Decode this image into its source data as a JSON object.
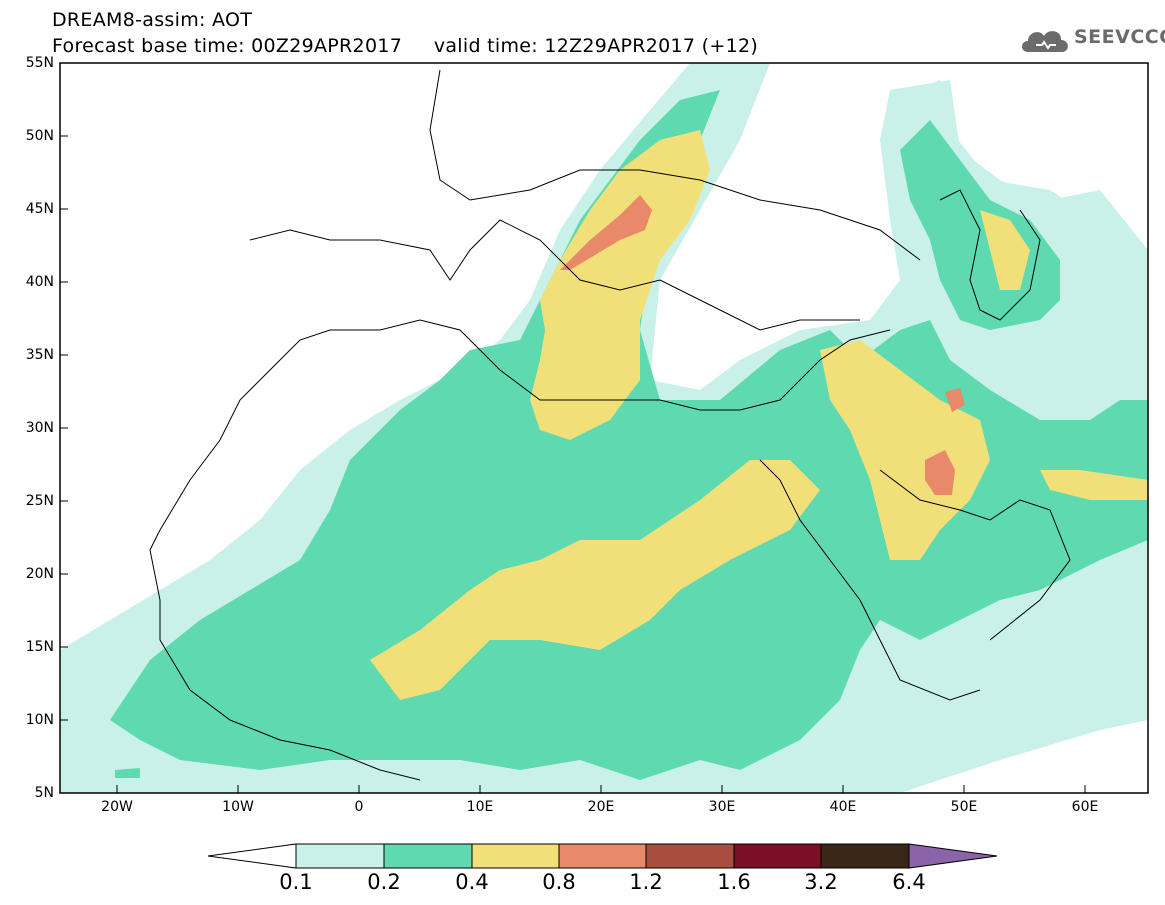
{
  "header": {
    "line1": "DREAM8-assim: AOT",
    "line2": "Forecast base time: 00Z29APR2017     valid time: 12Z29APR2017 (+12)",
    "logo_text": "SEEVCCC",
    "logo_icon": "cloud-icon"
  },
  "map": {
    "lon_range": [
      -25,
      65
    ],
    "lat_range": [
      5,
      55
    ],
    "y_labels": [
      "55N",
      "50N",
      "45N",
      "40N",
      "35N",
      "30N",
      "25N",
      "20N",
      "15N",
      "10N",
      "5N"
    ],
    "x_labels": [
      "20W",
      "10W",
      "0",
      "10E",
      "20E",
      "30E",
      "40E",
      "50E",
      "60E"
    ]
  },
  "colorbar": {
    "labels": [
      "0.1",
      "0.2",
      "0.4",
      "0.8",
      "1.2",
      "1.6",
      "3.2",
      "6.4"
    ],
    "colors": [
      "#ffffff",
      "#c9f1ea",
      "#5fd9b0",
      "#f1e07a",
      "#e8896a",
      "#a84d3f",
      "#7a0f25",
      "#3b2717",
      "#8b63a8"
    ]
  },
  "colors": {
    "level1": "#c9f1ea",
    "level2": "#5fd9b0",
    "level3": "#f1e07a",
    "level4": "#e8896a"
  }
}
